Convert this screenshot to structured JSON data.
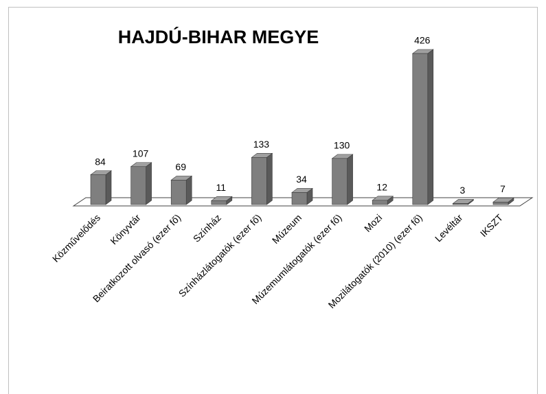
{
  "chart_data": {
    "type": "bar3d",
    "title": "HAJDÚ-BIHAR MEGYE",
    "categories": [
      "Közművelődés",
      "Könyvtár",
      "Beiratkozott olvasó (ezer fő)",
      "Színház",
      "Színházlátogatók (ezer fő)",
      "Múzeum",
      "Múzemumlátogatók (ezer fő)",
      "Mozi",
      "Mozilátogatók (2010) (ezer fő)",
      "Levéltár",
      "IKSZT"
    ],
    "values": [
      84,
      107,
      69,
      11,
      133,
      34,
      130,
      12,
      426,
      3,
      7
    ],
    "color": "#7f7f7f"
  }
}
